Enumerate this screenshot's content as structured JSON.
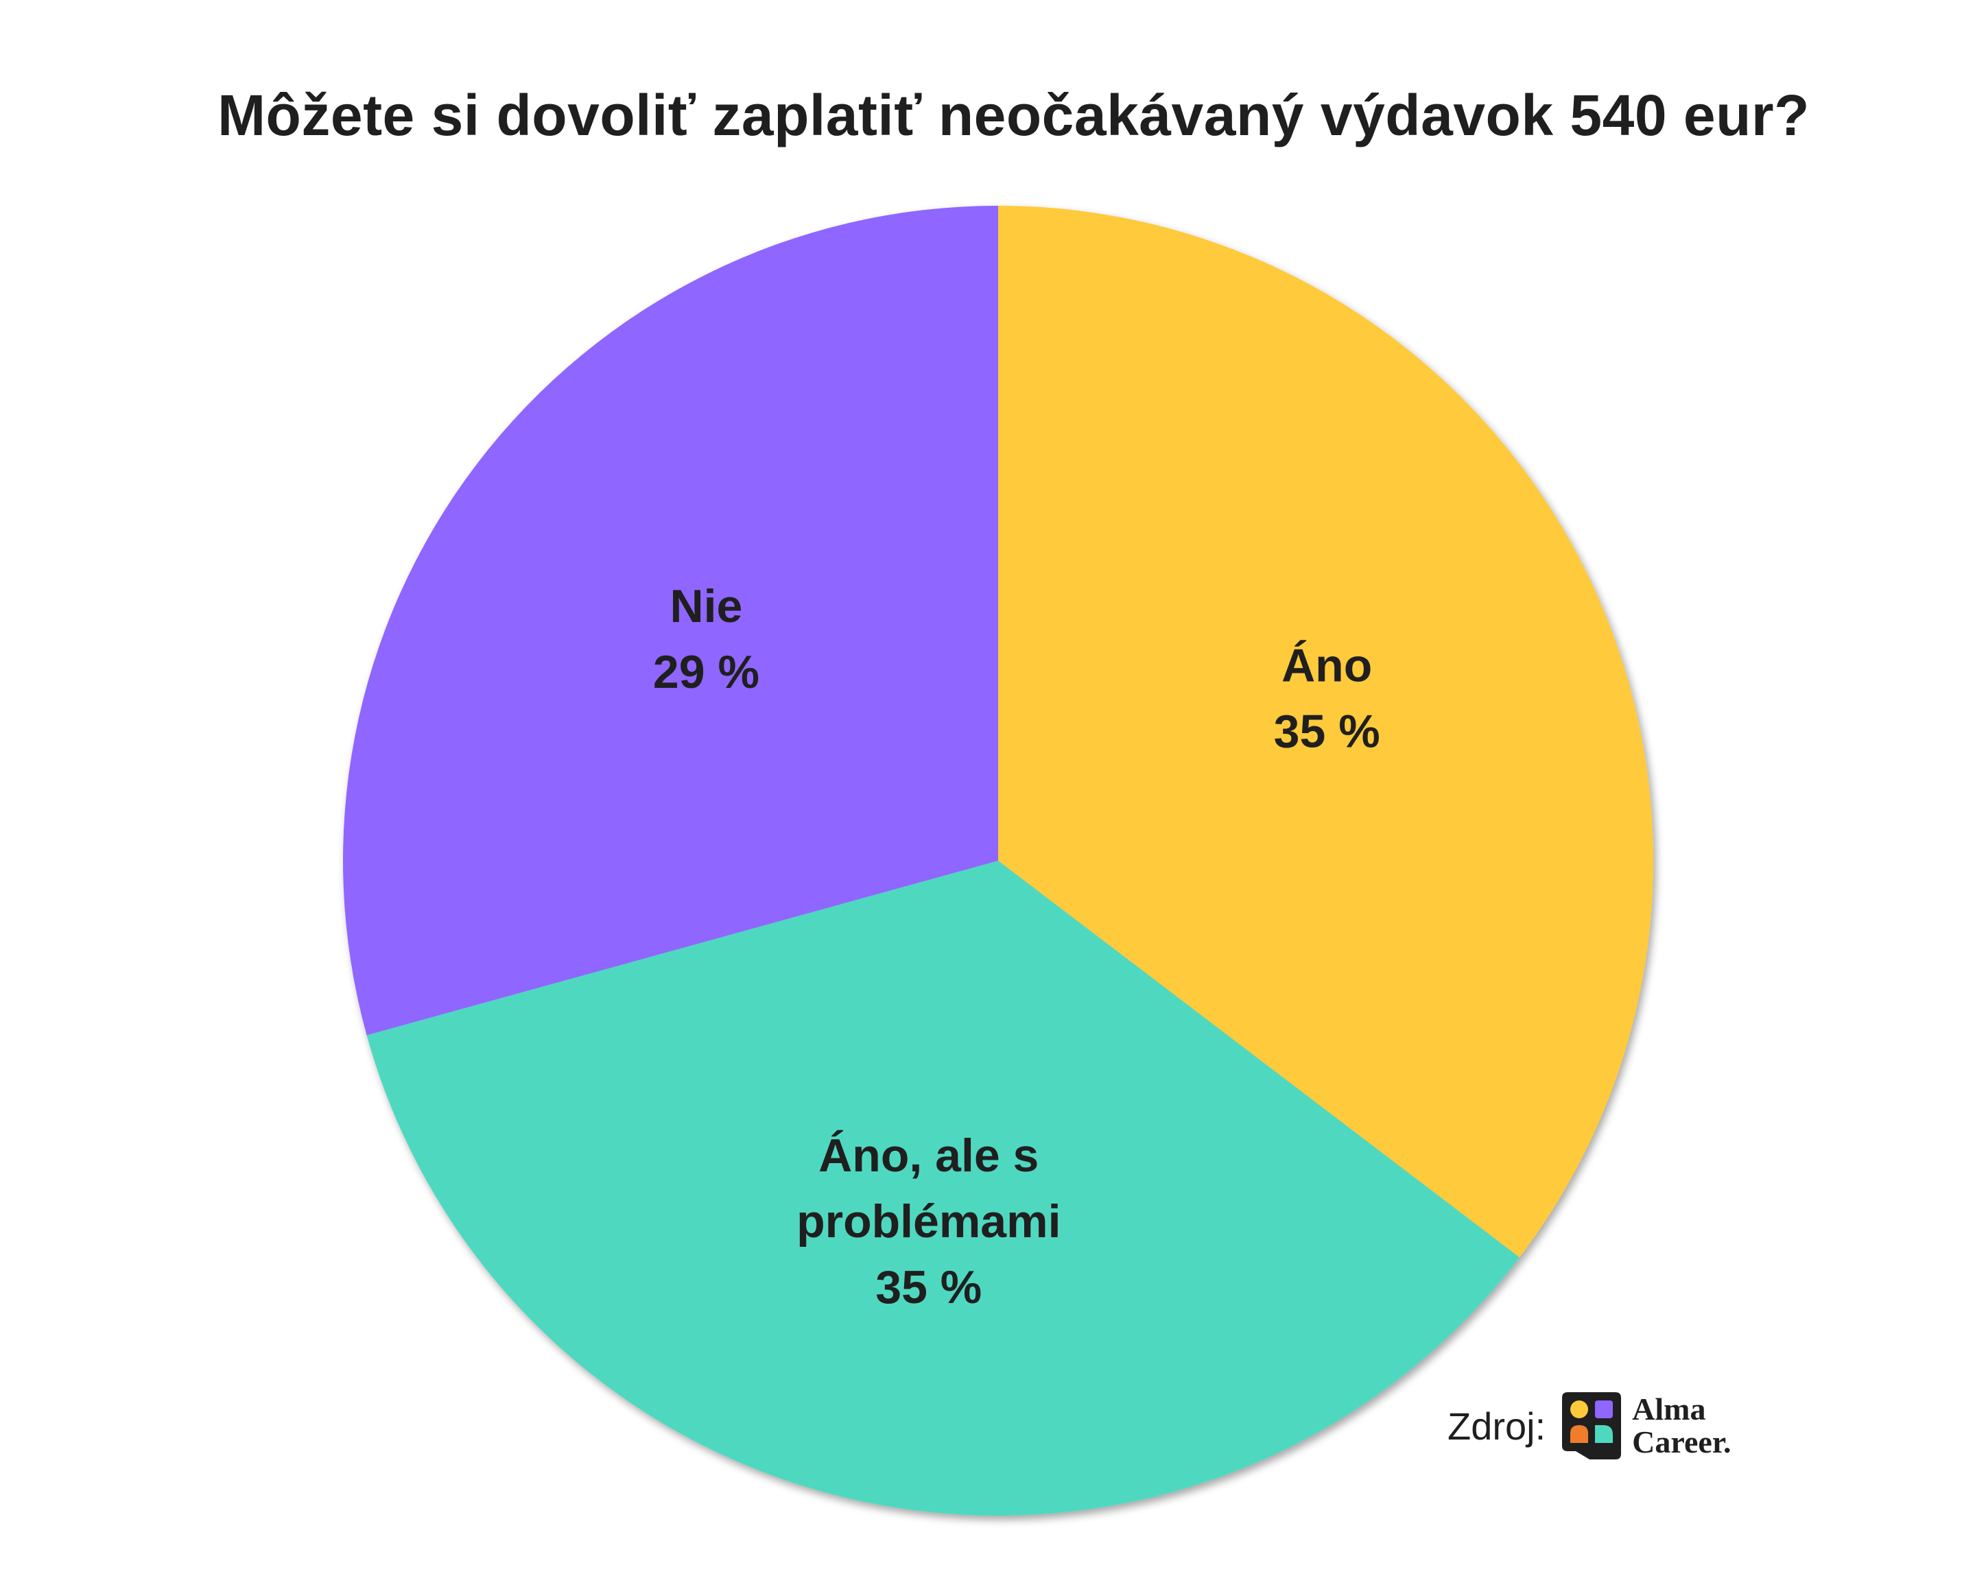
{
  "title": "Môžete si dovoliť zaplatiť neočakávaný výdavok 540 eur?",
  "chart_data": {
    "type": "pie",
    "title": "Môžete si dovoliť zaplatiť neočakávaný výdavok 540 eur?",
    "start": "12 o'clock",
    "direction": "clockwise",
    "slices": [
      {
        "label_lines": [
          "Áno"
        ],
        "value": 35,
        "value_text": "35 %",
        "color": "#FFCA3A"
      },
      {
        "label_lines": [
          "Áno, ale s",
          "problémami"
        ],
        "value": 35,
        "value_text": "35 %",
        "color": "#4FD8C0"
      },
      {
        "label_lines": [
          "Nie"
        ],
        "value": 29,
        "value_text": "29 %",
        "color": "#8F66FF"
      }
    ],
    "legend": "none"
  },
  "source": {
    "label": "Zdroj:",
    "logo_line1": "Alma",
    "logo_line2": "Career.",
    "logo_colors": [
      "#FFCA3A",
      "#8F66FF",
      "#F07D2C",
      "#4FD8C0"
    ],
    "logo_icon": "alma-career-logo-icon"
  }
}
